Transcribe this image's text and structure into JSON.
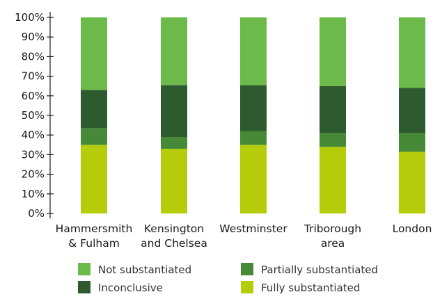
{
  "chart_data": {
    "type": "bar",
    "stacked": true,
    "normalized": true,
    "categories": [
      [
        "Hammersmith",
        "& Fulham"
      ],
      [
        "Kensington",
        "and Chelsea"
      ],
      [
        "Westminster"
      ],
      [
        "Triborough",
        "area"
      ],
      [
        "London"
      ]
    ],
    "series": [
      {
        "name": "Fully substantiated",
        "color": "#b5cc0a",
        "values": [
          35,
          33,
          35,
          34,
          31.5
        ]
      },
      {
        "name": "Partially substantiated",
        "color": "#468a37",
        "values": [
          8.5,
          6,
          7,
          7,
          9.5
        ]
      },
      {
        "name": "Inconclusive",
        "color": "#2d5a2e",
        "values": [
          19.5,
          26.5,
          23.5,
          24,
          23
        ]
      },
      {
        "name": "Not substantiated",
        "color": "#6cba4a",
        "values": [
          37,
          34.5,
          34.5,
          35,
          36
        ]
      }
    ],
    "ylim": [
      0,
      100
    ],
    "yticks": [
      "0%",
      "10%",
      "20%",
      "30%",
      "40%",
      "50%",
      "60%",
      "70%",
      "80%",
      "90%",
      "100%"
    ],
    "grid": false,
    "legend_position": "bottom",
    "legend_order": [
      "Not substantiated",
      "Partially substantiated",
      "Inconclusive",
      "Fully substantiated"
    ]
  }
}
